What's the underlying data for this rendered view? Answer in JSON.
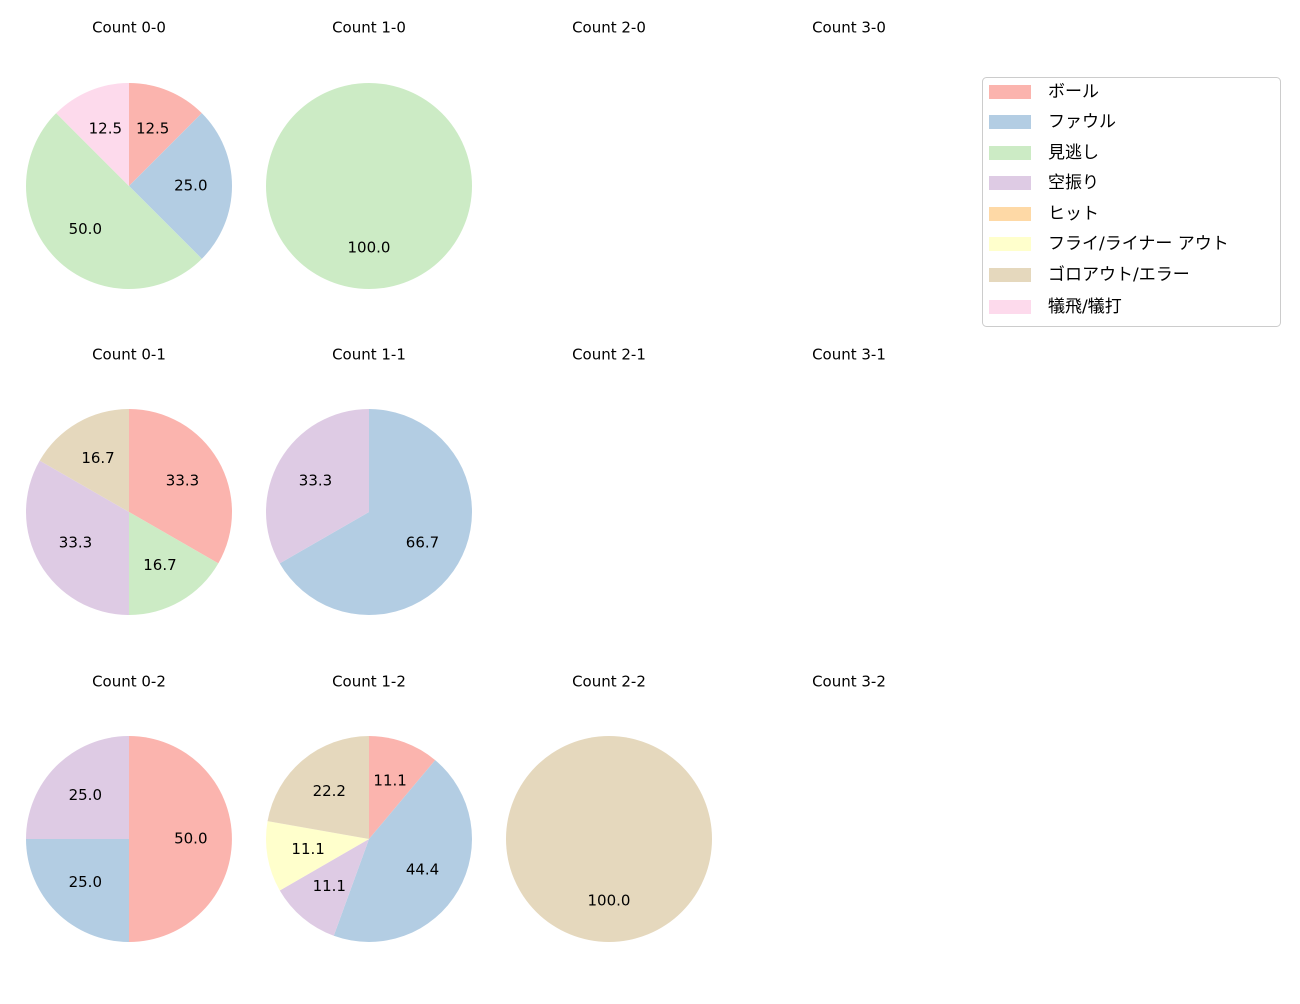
{
  "chart_data": {
    "type": "pie",
    "categories": [
      "ボール",
      "ファウル",
      "見逃し",
      "空振り",
      "ヒット",
      "フライ/ライナー アウト",
      "ゴロアウト/エラー",
      "犠飛/犠打"
    ],
    "colors": [
      "#fbb4ae",
      "#b3cde3",
      "#ccebc5",
      "#decbe4",
      "#fed9a6",
      "#ffffcc",
      "#e5d8bd",
      "#fddaec"
    ],
    "legend_position": "top-right",
    "subplots": [
      {
        "title": "Count 0-0",
        "values": [
          12.5,
          25.0,
          50.0,
          0,
          0,
          0,
          0,
          12.5
        ]
      },
      {
        "title": "Count 1-0",
        "values": [
          0,
          0,
          100.0,
          0,
          0,
          0,
          0,
          0
        ]
      },
      {
        "title": "Count 2-0",
        "values": []
      },
      {
        "title": "Count 3-0",
        "values": []
      },
      {
        "title": "Count 0-1",
        "values": [
          33.3,
          0,
          16.7,
          33.3,
          0,
          0,
          16.7,
          0
        ]
      },
      {
        "title": "Count 1-1",
        "values": [
          0,
          66.7,
          0,
          33.3,
          0,
          0,
          0,
          0
        ]
      },
      {
        "title": "Count 2-1",
        "values": []
      },
      {
        "title": "Count 3-1",
        "values": []
      },
      {
        "title": "Count 0-2",
        "values": [
          50.0,
          25.0,
          0,
          25.0,
          0,
          0,
          0,
          0
        ]
      },
      {
        "title": "Count 1-2",
        "values": [
          11.1,
          44.4,
          0,
          11.1,
          0,
          11.1,
          22.2,
          0
        ]
      },
      {
        "title": "Count 2-2",
        "values": [
          0,
          0,
          0,
          0,
          0,
          0,
          100.0,
          0
        ]
      },
      {
        "title": "Count 3-2",
        "values": []
      }
    ]
  }
}
